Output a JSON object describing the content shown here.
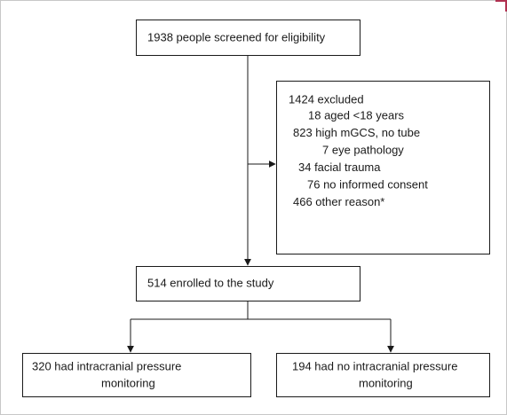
{
  "nodes": [
    {
      "lines": [
        "1938 people screened for eligibility"
      ]
    },
    {
      "title": "1424 excluded",
      "items": [
        "18 aged <18 years",
        "823 high mGCS, no tube",
        "7 eye pathology",
        "34 facial trauma",
        "76 no informed consent",
        "466 other reason*"
      ]
    },
    {
      "lines": [
        "514 enrolled to the study"
      ]
    },
    {
      "lines": [
        "320 had intracranial pressure",
        "monitoring"
      ]
    },
    {
      "lines": [
        "194 had no intracranial pressure",
        "monitoring"
      ]
    }
  ]
}
